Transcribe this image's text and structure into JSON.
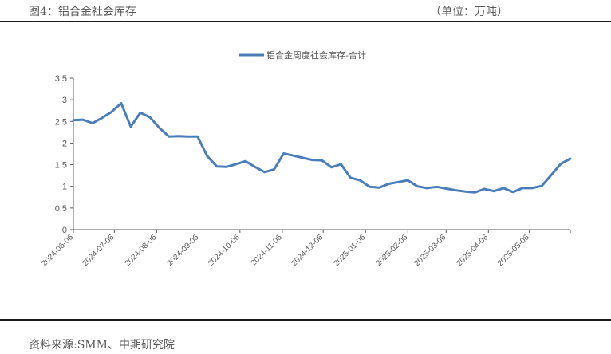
{
  "header": {
    "figure_title": "图4：铝合金社会库存",
    "unit": "（单位：万吨）"
  },
  "footer": {
    "source": "资料来源:SMM、中期研究院"
  },
  "colors": {
    "series": "#4a7ebb",
    "axis": "#595959"
  },
  "chart_data": {
    "type": "line",
    "title": "",
    "xlabel": "",
    "ylabel": "",
    "ylim": [
      0,
      3.5
    ],
    "y_ticks": [
      "0",
      "0.5",
      "1",
      "1.5",
      "2",
      "2.5",
      "3",
      "3.5"
    ],
    "grid": false,
    "legend_position": "top",
    "x_tick_labels": [
      "2024-06-06",
      "2024-07-06",
      "2024-08-06",
      "2024-09-06",
      "2024-10-06",
      "2024-11-06",
      "2024-12-06",
      "2025-01-06",
      "2025-02-06",
      "2025-03-06",
      "2025-04-06",
      "2025-05-06"
    ],
    "series": [
      {
        "name": "铝合金周度社会库存-合计",
        "x": [
          "2024-06-06",
          "2024-06-13",
          "2024-06-20",
          "2024-06-27",
          "2024-07-04",
          "2024-07-11",
          "2024-07-18",
          "2024-07-25",
          "2024-08-01",
          "2024-08-08",
          "2024-08-15",
          "2024-08-22",
          "2024-08-29",
          "2024-09-05",
          "2024-09-12",
          "2024-09-19",
          "2024-09-26",
          "2024-10-03",
          "2024-10-10",
          "2024-10-17",
          "2024-10-24",
          "2024-10-31",
          "2024-11-07",
          "2024-11-14",
          "2024-11-21",
          "2024-11-28",
          "2024-12-05",
          "2024-12-12",
          "2024-12-19",
          "2024-12-26",
          "2025-01-02",
          "2025-01-09",
          "2025-01-16",
          "2025-01-23",
          "2025-01-30",
          "2025-02-06",
          "2025-02-13",
          "2025-02-20",
          "2025-02-27",
          "2025-03-06",
          "2025-03-13",
          "2025-03-20",
          "2025-03-27",
          "2025-04-03",
          "2025-04-10",
          "2025-04-17",
          "2025-04-24",
          "2025-05-01",
          "2025-05-08",
          "2025-05-15",
          "2025-05-22",
          "2025-05-29",
          "2025-06-05"
        ],
        "values": [
          2.53,
          2.54,
          2.46,
          2.58,
          2.72,
          2.92,
          2.38,
          2.7,
          2.6,
          2.35,
          2.15,
          2.16,
          2.15,
          2.15,
          1.7,
          1.46,
          1.45,
          1.51,
          1.58,
          1.45,
          1.33,
          1.39,
          1.76,
          1.71,
          1.66,
          1.61,
          1.6,
          1.44,
          1.51,
          1.2,
          1.14,
          0.99,
          0.97,
          1.06,
          1.1,
          1.14,
          1.0,
          0.96,
          0.99,
          0.95,
          0.91,
          0.88,
          0.86,
          0.94,
          0.89,
          0.96,
          0.87,
          0.96,
          0.96,
          1.01,
          1.26,
          1.52,
          1.64
        ]
      }
    ]
  }
}
